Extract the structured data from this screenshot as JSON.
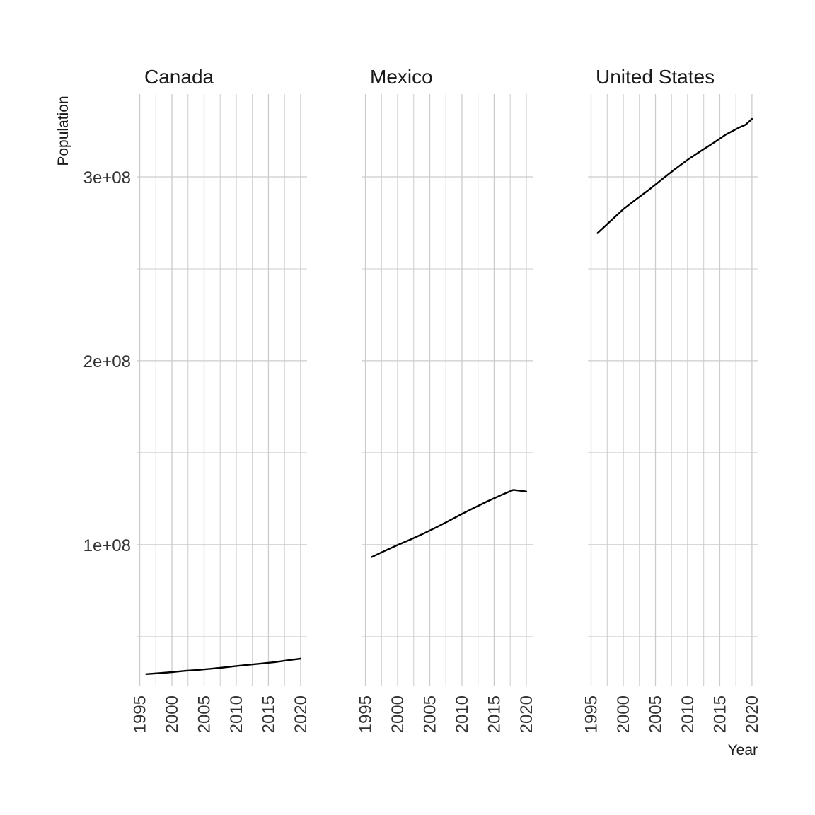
{
  "chart_data": {
    "type": "line",
    "xlabel": "Year",
    "ylabel": "Population",
    "xlim": [
      1994.5,
      2021.0
    ],
    "ylim": [
      23000000,
      345000000
    ],
    "x_ticks": [
      1995,
      2000,
      2005,
      2010,
      2015,
      2020
    ],
    "x_tick_labels": [
      "1995",
      "2000",
      "2005",
      "2010",
      "2015",
      "2020"
    ],
    "x_minor_ticks": [
      1997.5,
      2002.5,
      2007.5,
      2012.5,
      2017.5
    ],
    "y_ticks": [
      100000000,
      200000000,
      300000000
    ],
    "y_tick_labels": [
      "1e+08",
      "2e+08",
      "3e+08"
    ],
    "y_minor_ticks": [
      50000000,
      150000000,
      250000000
    ],
    "grid": true,
    "legend": "none",
    "colors": {
      "line": "#000000",
      "grid": "#cccccc",
      "background": "#ffffff"
    },
    "facets": [
      {
        "title": "Canada",
        "x": [
          1996,
          1998,
          2000,
          2002,
          2004,
          2006,
          2008,
          2010,
          2012,
          2014,
          2016,
          2018,
          2020
        ],
        "values": [
          29600000,
          30100000,
          30700000,
          31400000,
          31900000,
          32500000,
          33200000,
          34000000,
          34700000,
          35400000,
          36100000,
          37100000,
          38000000
        ]
      },
      {
        "title": "Mexico",
        "x": [
          1996,
          1998,
          2000,
          2002,
          2004,
          2006,
          2008,
          2010,
          2012,
          2014,
          2016,
          2018,
          2020
        ],
        "values": [
          93300000,
          96600000,
          99800000,
          102800000,
          106000000,
          109400000,
          113000000,
          116700000,
          120200000,
          123600000,
          126800000,
          129800000,
          128900000
        ]
      },
      {
        "title": "United States",
        "x": [
          1996,
          1998,
          2000,
          2002,
          2004,
          2006,
          2008,
          2010,
          2012,
          2014,
          2016,
          2018,
          2019,
          2020
        ],
        "values": [
          269400000,
          275900000,
          282400000,
          287800000,
          293000000,
          298600000,
          304100000,
          309300000,
          313900000,
          318400000,
          323100000,
          326800000,
          328300000,
          331500000
        ]
      }
    ]
  }
}
